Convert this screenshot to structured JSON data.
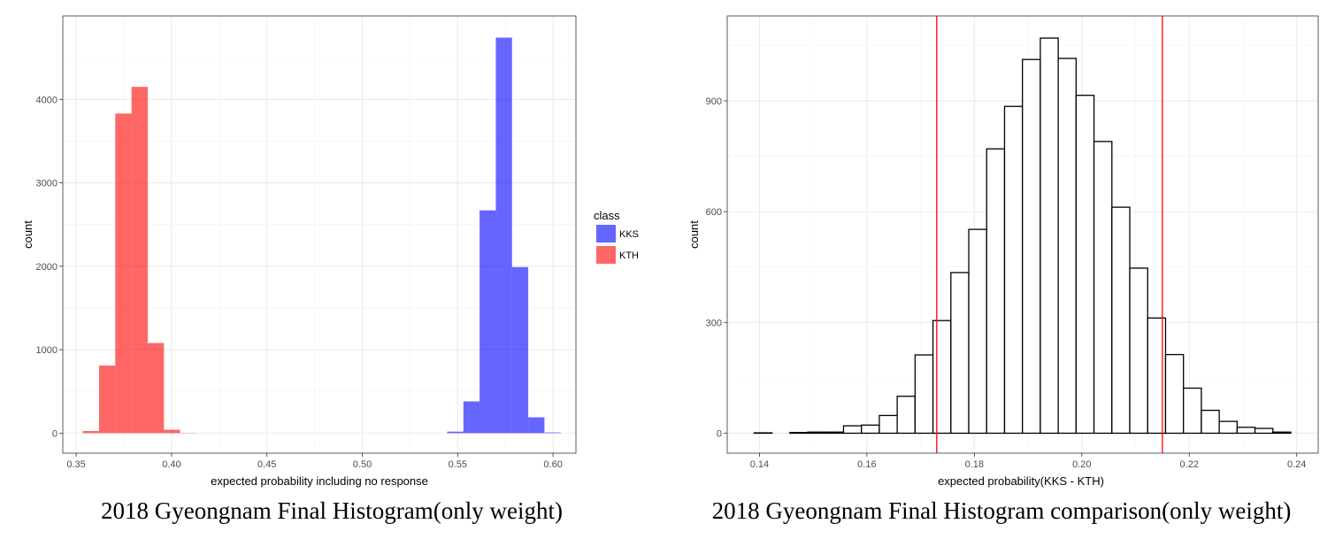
{
  "chart_data": [
    {
      "type": "bar",
      "subtype": "histogram",
      "caption": "2018 Gyeongnam Final Histogram(only weight)",
      "xlabel": "expected probability including no response",
      "ylabel": "count",
      "xlim": [
        0.343,
        0.612
      ],
      "ylim": [
        -240,
        5000
      ],
      "xticks": [
        0.35,
        0.4,
        0.45,
        0.5,
        0.55,
        0.6
      ],
      "xtick_labels": [
        "0.35",
        "0.40",
        "0.45",
        "0.50",
        "0.55",
        "0.60"
      ],
      "yticks": [
        0,
        1000,
        2000,
        3000,
        4000
      ],
      "ytick_labels": [
        "0",
        "1000",
        "2000",
        "3000",
        "4000"
      ],
      "grid": true,
      "legend": {
        "title": "class",
        "position": "right"
      },
      "series": [
        {
          "name": "KKS",
          "color": "#0000ff",
          "opacity": 0.6,
          "bin_width": 0.0085,
          "bins": [
            {
              "x0": 0.5445,
              "count": 18
            },
            {
              "x0": 0.553,
              "count": 380
            },
            {
              "x0": 0.5615,
              "count": 2670
            },
            {
              "x0": 0.57,
              "count": 4740
            },
            {
              "x0": 0.5785,
              "count": 1990
            },
            {
              "x0": 0.587,
              "count": 190
            },
            {
              "x0": 0.5955,
              "count": 8
            }
          ]
        },
        {
          "name": "KTH",
          "color": "#ff0000",
          "opacity": 0.6,
          "bin_width": 0.0085,
          "bins": [
            {
              "x0": 0.3535,
              "count": 25
            },
            {
              "x0": 0.362,
              "count": 810
            },
            {
              "x0": 0.3705,
              "count": 3830
            },
            {
              "x0": 0.379,
              "count": 4150
            },
            {
              "x0": 0.3875,
              "count": 1080
            },
            {
              "x0": 0.396,
              "count": 40
            },
            {
              "x0": 0.4045,
              "count": 3
            }
          ]
        }
      ]
    },
    {
      "type": "bar",
      "subtype": "histogram",
      "caption": "2018 Gyeongnam Final Histogram comparison(only weight)",
      "xlabel": "expected probability(KKS - KTH)",
      "ylabel": "count",
      "xlim": [
        0.134,
        0.244
      ],
      "ylim": [
        -54,
        1130
      ],
      "xticks": [
        0.14,
        0.16,
        0.18,
        0.2,
        0.22,
        0.24
      ],
      "xtick_labels": [
        "0.14",
        "0.16",
        "0.18",
        "0.20",
        "0.22",
        "0.24"
      ],
      "yticks": [
        0,
        300,
        600,
        900
      ],
      "ytick_labels": [
        "0",
        "300",
        "600",
        "900"
      ],
      "grid": true,
      "fill_color": "#ffffff",
      "stroke_color": "#000000",
      "bin_start": 0.139,
      "bin_width": 0.00333,
      "counts": [
        1,
        0,
        2,
        3,
        3,
        20,
        22,
        48,
        100,
        212,
        305,
        435,
        552,
        770,
        885,
        1012,
        1070,
        1015,
        915,
        790,
        612,
        447,
        312,
        213,
        122,
        62,
        32,
        16,
        13,
        3
      ],
      "vlines": [
        {
          "x": 0.173,
          "color": "#ff0000"
        },
        {
          "x": 0.215,
          "color": "#ff0000"
        }
      ]
    }
  ]
}
